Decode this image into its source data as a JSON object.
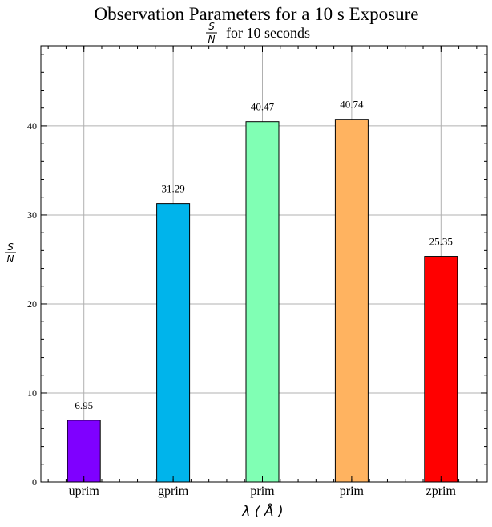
{
  "chart_data": {
    "type": "bar",
    "title": "Observation Parameters for a 10 s Exposure",
    "subtitle": {
      "fraction_numerator": "S",
      "fraction_denominator": "N",
      "text": "for 10 seconds"
    },
    "xlabel": "λ ( Å )",
    "ylabel": {
      "fraction_numerator": "S",
      "fraction_denominator": "N"
    },
    "categories": [
      "uprim",
      "gprim",
      "prim",
      "prim",
      "zprim"
    ],
    "values": [
      6.95,
      31.29,
      40.47,
      40.74,
      25.35
    ],
    "data_labels": [
      "6.95",
      "31.29",
      "40.47",
      "40.74",
      "25.35"
    ],
    "colors": [
      "#7f00ff",
      "#00b4eb",
      "#80ffb4",
      "#ffb360",
      "#ff0000"
    ],
    "ylim": [
      0,
      49
    ],
    "yticks": [
      0,
      10,
      20,
      30,
      40
    ],
    "grid": true
  }
}
